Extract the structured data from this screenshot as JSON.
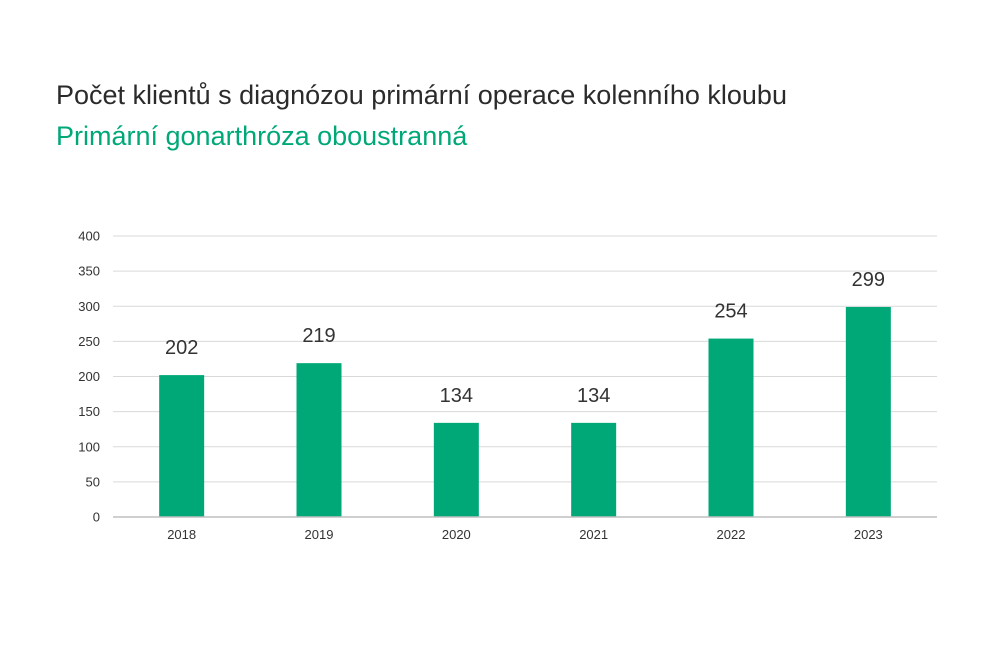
{
  "header": {
    "title": "Počet klientů s diagnózou primární operace kolenního kloubu",
    "subtitle": "Primární gonarthróza oboustranná"
  },
  "colors": {
    "bar": "#00a878",
    "subtitle": "#00a878",
    "gridline": "#d9d9d9",
    "axis": "#bfbfbf"
  },
  "chart_data": {
    "type": "bar",
    "title": "Počet klientů s diagnózou primární operace kolenního kloubu",
    "subtitle": "Primární gonarthróza oboustranná",
    "categories": [
      "2018",
      "2019",
      "2020",
      "2021",
      "2022",
      "2023"
    ],
    "values": [
      202,
      219,
      134,
      134,
      254,
      299
    ],
    "data_labels": [
      "202",
      "219",
      "134",
      "134",
      "254",
      "299"
    ],
    "ylim": [
      0,
      400
    ],
    "yticks": [
      0,
      50,
      100,
      150,
      200,
      250,
      300,
      350,
      400
    ],
    "grid": true,
    "legend": "none"
  }
}
